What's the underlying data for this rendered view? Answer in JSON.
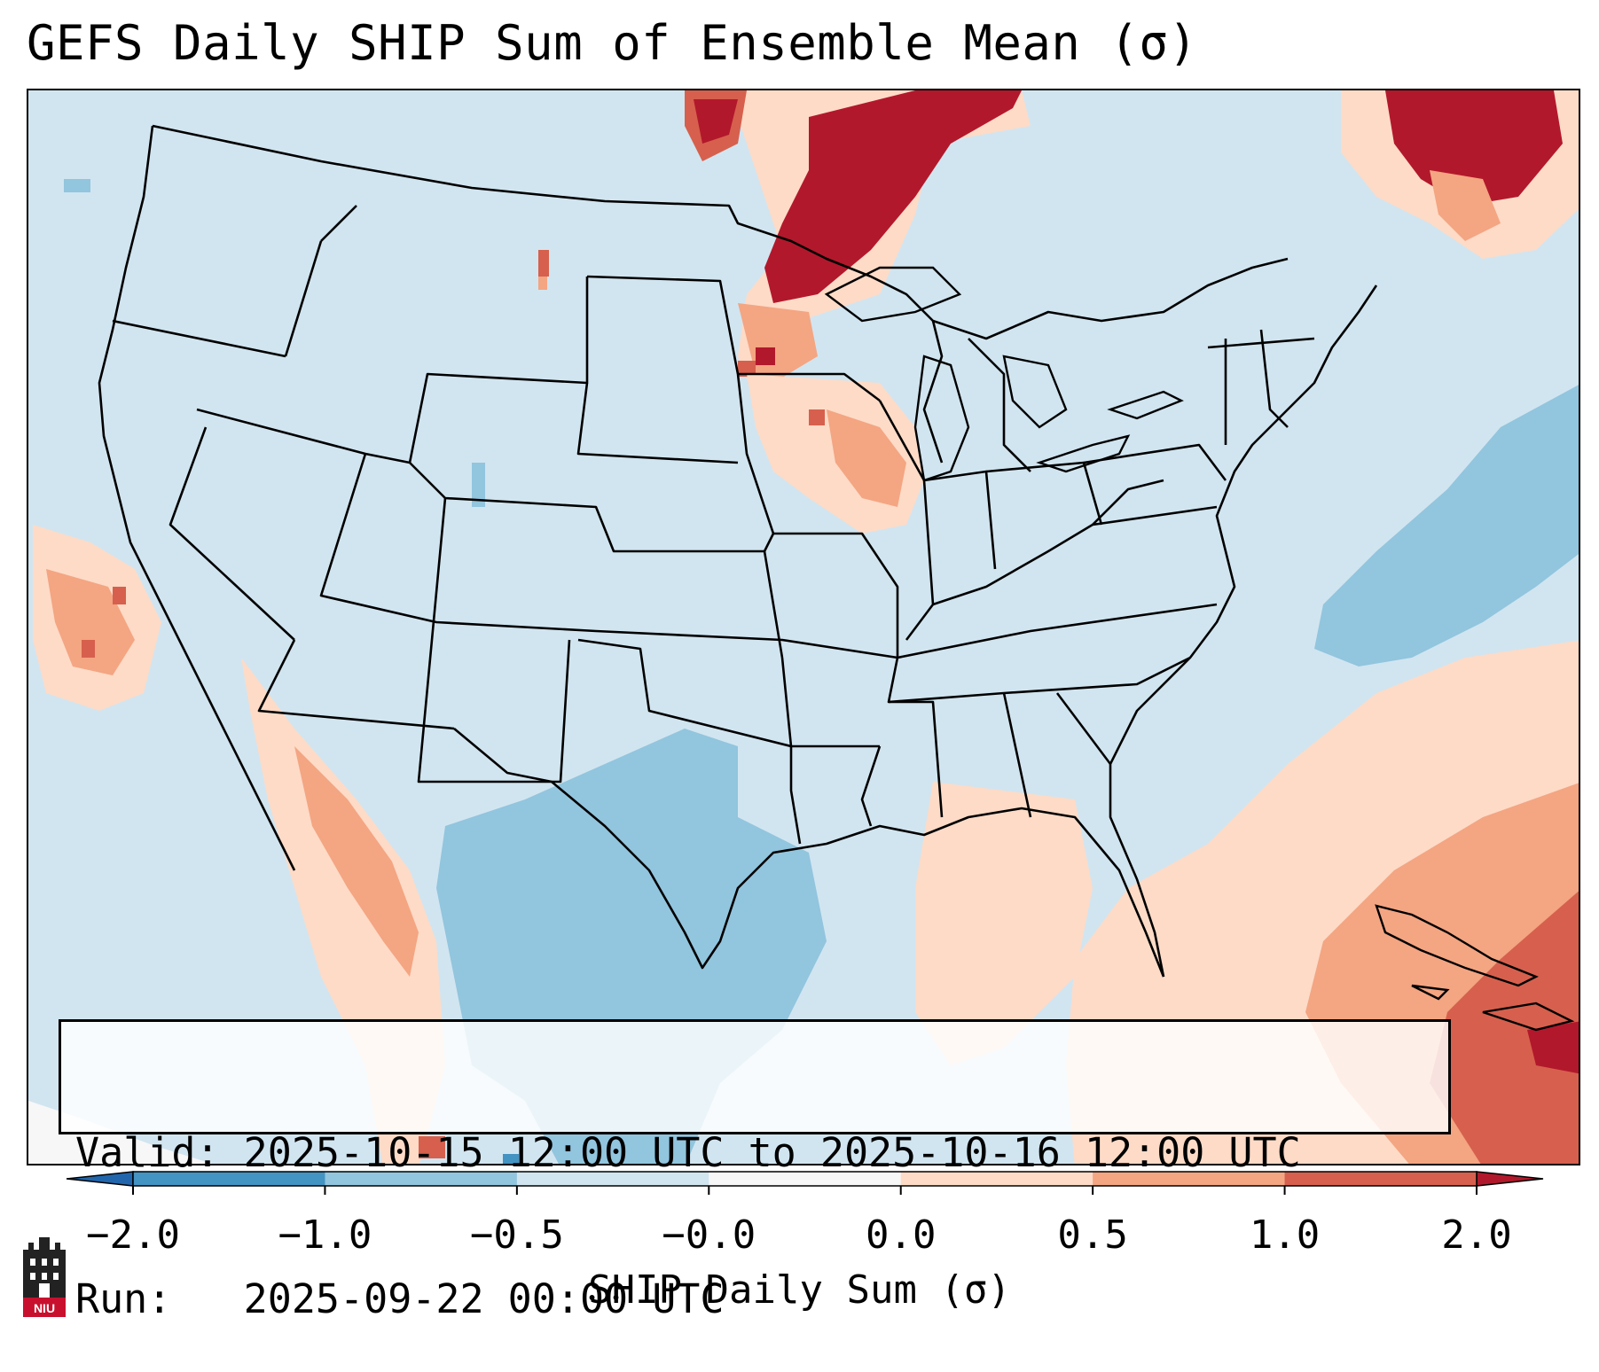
{
  "title": "GEFS Daily SHIP Sum of Ensemble Mean (σ)",
  "info": {
    "valid_line": "Valid: 2025-10-15 12:00 UTC to 2025-10-16 12:00 UTC",
    "run_line": "Run:   2025-09-22 00:00 UTC"
  },
  "colorbar": {
    "label": "SHIP Daily Sum (σ)",
    "ticks": [
      "−2.0",
      "−1.0",
      "−0.5",
      "−0.0",
      "0.0",
      "0.5",
      "1.0",
      "2.0"
    ],
    "colors": [
      "#4393c3",
      "#92c5de",
      "#d1e5f0",
      "#f7f7f7",
      "#fddbc7",
      "#f4a582",
      "#d6604d"
    ],
    "extend_low": "#2166ac",
    "extend_high": "#b2182b"
  },
  "map": {
    "background": "#d1e5f0",
    "fields": [
      {
        "name": "upper-midwest-high",
        "level": "2.0",
        "color": "#b2182b"
      },
      {
        "name": "new-england-high",
        "level": "2.0",
        "color": "#b2182b"
      },
      {
        "name": "caribbean-moderate",
        "level": "1.0",
        "color": "#d6604d"
      },
      {
        "name": "gulf-atlantic-low-positive",
        "level": "0.5",
        "color": "#fddbc7"
      },
      {
        "name": "western-gulf-negative",
        "level": "-0.5",
        "color": "#92c5de"
      },
      {
        "name": "atlantic-negative",
        "level": "-0.5",
        "color": "#92c5de"
      }
    ]
  },
  "logo": {
    "text": "NIU",
    "icon": "niu-castle-icon"
  }
}
